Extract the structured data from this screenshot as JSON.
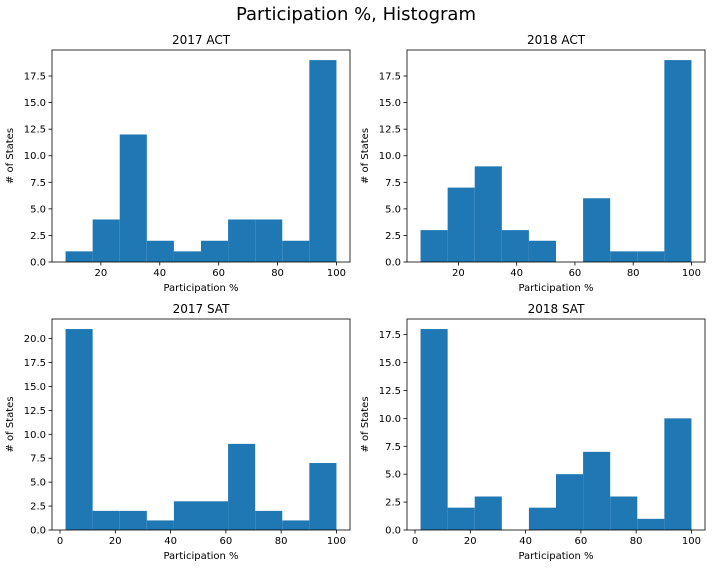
{
  "figure": {
    "title": "Participation %, Histogram"
  },
  "chart_data": [
    {
      "type": "bar",
      "title": "2017 ACT",
      "xlabel": "Participation %",
      "ylabel": "# of States",
      "bin_edges": [
        8,
        17.2,
        26.4,
        35.6,
        44.8,
        54,
        63.2,
        72.4,
        81.6,
        90.8,
        100
      ],
      "values": [
        1,
        4,
        12,
        2,
        1,
        2,
        4,
        4,
        2,
        19
      ],
      "xlim": [
        3.4,
        104.6
      ],
      "ylim": [
        0,
        19.95
      ],
      "xticks": [
        20,
        40,
        60,
        80,
        100
      ],
      "xtick_labels": [
        "20",
        "40",
        "60",
        "80",
        "100"
      ],
      "yticks": [
        0,
        2.5,
        5,
        7.5,
        10,
        12.5,
        15,
        17.5
      ],
      "ytick_labels": [
        "0.0",
        "2.5",
        "5.0",
        "7.5",
        "10.0",
        "12.5",
        "15.0",
        "17.5"
      ],
      "color": "#1f77b4",
      "grid": false
    },
    {
      "type": "bar",
      "title": "2018 ACT",
      "xlabel": "Participation %",
      "ylabel": "# of States",
      "bin_edges": [
        7,
        16.3,
        25.6,
        34.9,
        44.2,
        53.5,
        62.8,
        72.1,
        81.4,
        90.7,
        100
      ],
      "values": [
        3,
        7,
        9,
        3,
        2,
        0,
        6,
        1,
        1,
        19
      ],
      "xlim": [
        2.35,
        104.65
      ],
      "ylim": [
        0,
        19.95
      ],
      "xticks": [
        20,
        40,
        60,
        80,
        100
      ],
      "xtick_labels": [
        "20",
        "40",
        "60",
        "80",
        "100"
      ],
      "yticks": [
        0,
        2.5,
        5,
        7.5,
        10,
        12.5,
        15,
        17.5
      ],
      "ytick_labels": [
        "0.0",
        "2.5",
        "5.0",
        "7.5",
        "10.0",
        "12.5",
        "15.0",
        "17.5"
      ],
      "color": "#1f77b4",
      "grid": false
    },
    {
      "type": "bar",
      "title": "2017 SAT",
      "xlabel": "Participation %",
      "ylabel": "# of States",
      "bin_edges": [
        2,
        11.8,
        21.6,
        31.4,
        41.2,
        51,
        60.8,
        70.6,
        80.4,
        90.2,
        100
      ],
      "values": [
        21,
        2,
        2,
        1,
        3,
        3,
        9,
        2,
        1,
        7
      ],
      "xlim": [
        -2.9,
        104.9
      ],
      "ylim": [
        0,
        22.05
      ],
      "xticks": [
        0,
        20,
        40,
        60,
        80,
        100
      ],
      "xtick_labels": [
        "0",
        "20",
        "40",
        "60",
        "80",
        "100"
      ],
      "yticks": [
        0,
        2.5,
        5,
        7.5,
        10,
        12.5,
        15,
        17.5,
        20
      ],
      "ytick_labels": [
        "0.0",
        "2.5",
        "5.0",
        "7.5",
        "10.0",
        "12.5",
        "15.0",
        "17.5",
        "20.0"
      ],
      "color": "#1f77b4",
      "grid": false
    },
    {
      "type": "bar",
      "title": "2018 SAT",
      "xlabel": "Participation %",
      "ylabel": "# of States",
      "bin_edges": [
        2,
        11.8,
        21.6,
        31.4,
        41.2,
        51,
        60.8,
        70.6,
        80.4,
        90.2,
        100
      ],
      "values": [
        18,
        2,
        3,
        0,
        2,
        5,
        7,
        3,
        1,
        10
      ],
      "xlim": [
        -2.9,
        104.9
      ],
      "ylim": [
        0,
        18.9
      ],
      "xticks": [
        0,
        20,
        40,
        60,
        80,
        100
      ],
      "xtick_labels": [
        "0",
        "20",
        "40",
        "60",
        "80",
        "100"
      ],
      "yticks": [
        0,
        2.5,
        5,
        7.5,
        10,
        12.5,
        15,
        17.5
      ],
      "ytick_labels": [
        "0.0",
        "2.5",
        "5.0",
        "7.5",
        "10.0",
        "12.5",
        "15.0",
        "17.5"
      ],
      "color": "#1f77b4",
      "grid": false
    }
  ]
}
